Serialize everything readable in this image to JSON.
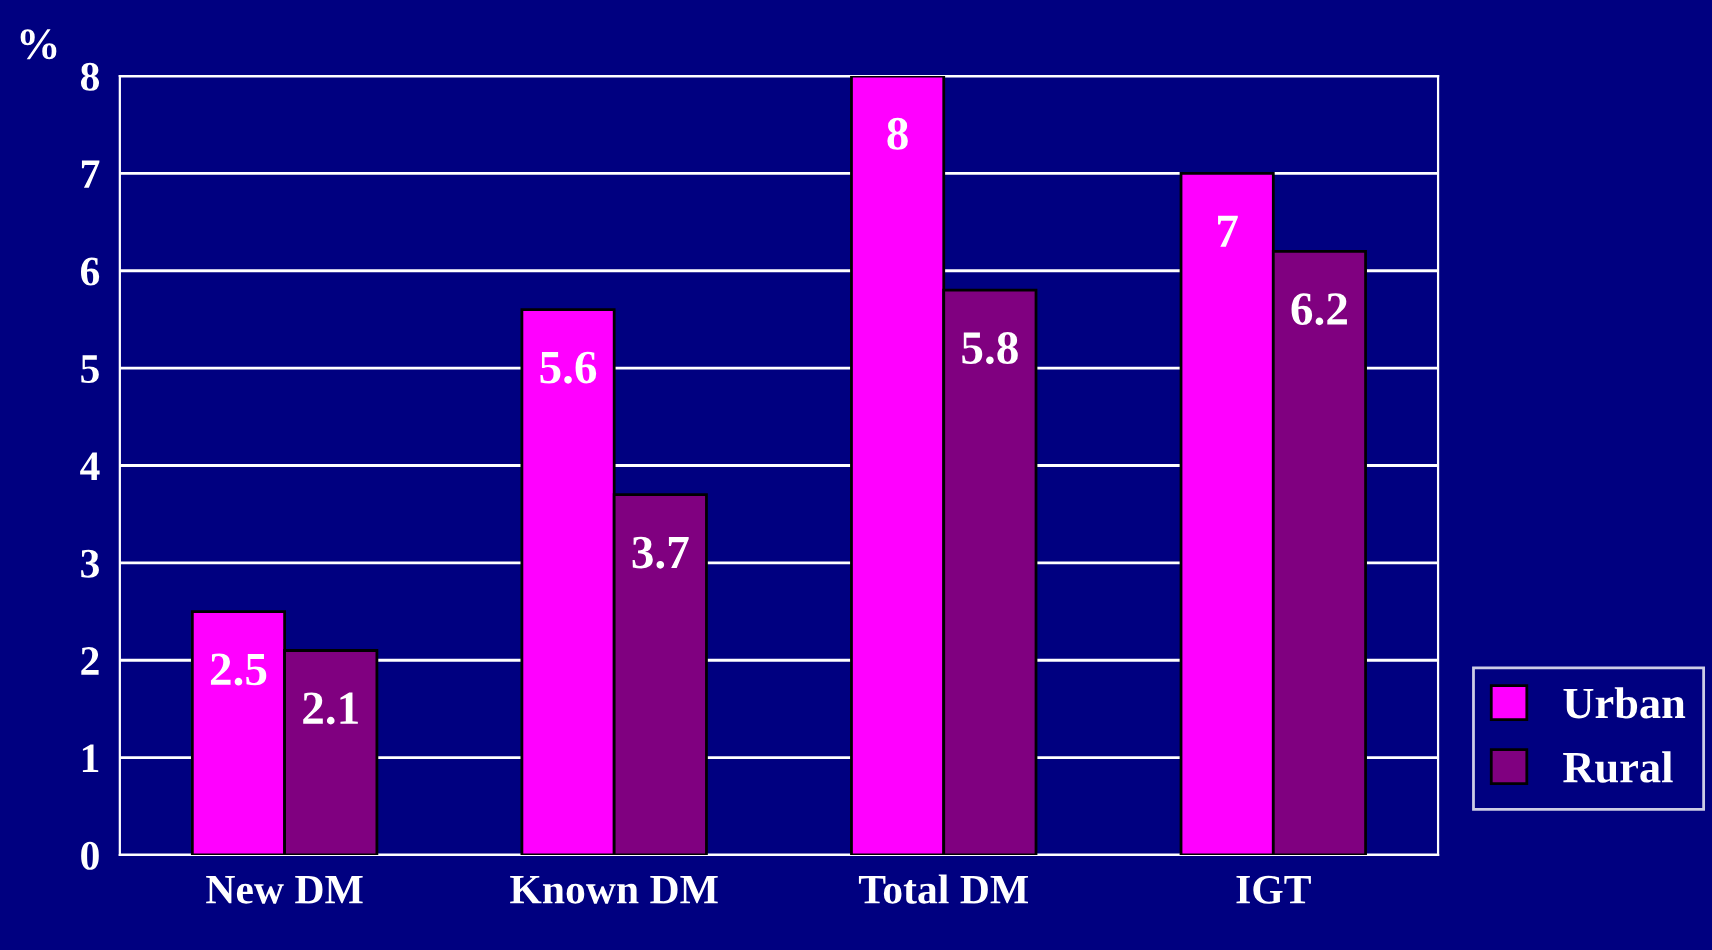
{
  "chart_data": {
    "type": "bar",
    "ylabel": "%",
    "categories": [
      "New DM",
      "Known DM",
      "Total DM",
      "IGT"
    ],
    "series": [
      {
        "name": "Urban",
        "color": "#ff00ff",
        "values": [
          2.5,
          5.6,
          8,
          7
        ]
      },
      {
        "name": "Rural",
        "color": "#800080",
        "values": [
          2.1,
          3.7,
          5.8,
          6.2
        ]
      }
    ],
    "ylim": [
      0,
      8
    ],
    "yticks": [
      0,
      1,
      2,
      3,
      4,
      5,
      6,
      7,
      8
    ],
    "grid": "y",
    "legend": "bottom right",
    "data_labels": true
  }
}
